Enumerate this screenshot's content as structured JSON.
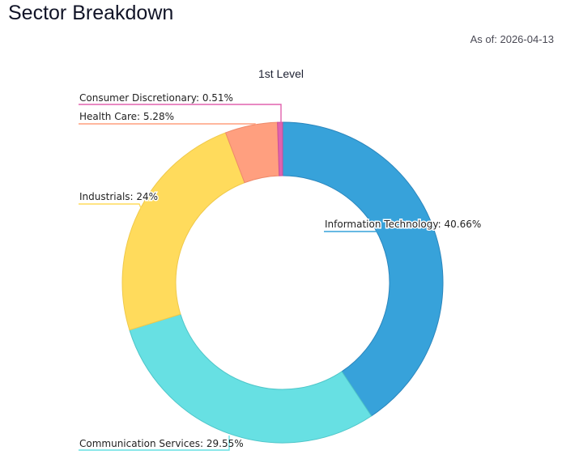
{
  "header": {
    "title": "Sector Breakdown",
    "as_of": "As of: 2026-04-13"
  },
  "chart_data": {
    "type": "pie",
    "variant": "donut",
    "title": "1st Level",
    "categories": [
      "Information Technology",
      "Communication Services",
      "Industrials",
      "Health Care",
      "Consumer Discretionary"
    ],
    "values": [
      40.66,
      29.55,
      24,
      5.28,
      0.51
    ],
    "unit": "%",
    "colors": [
      "#37a2da",
      "#67e0e3",
      "#ffdb5c",
      "#ff9f7f",
      "#e062ae"
    ],
    "labels": [
      "Information Technology: 40.66%",
      "Communication Services: 29.55%",
      "Industrials: 24%",
      "Health Care: 5.28%",
      "Consumer Discretionary: 0.51%"
    ],
    "start_angle": "top, clockwise",
    "legend": "none (leader-line labels)"
  }
}
